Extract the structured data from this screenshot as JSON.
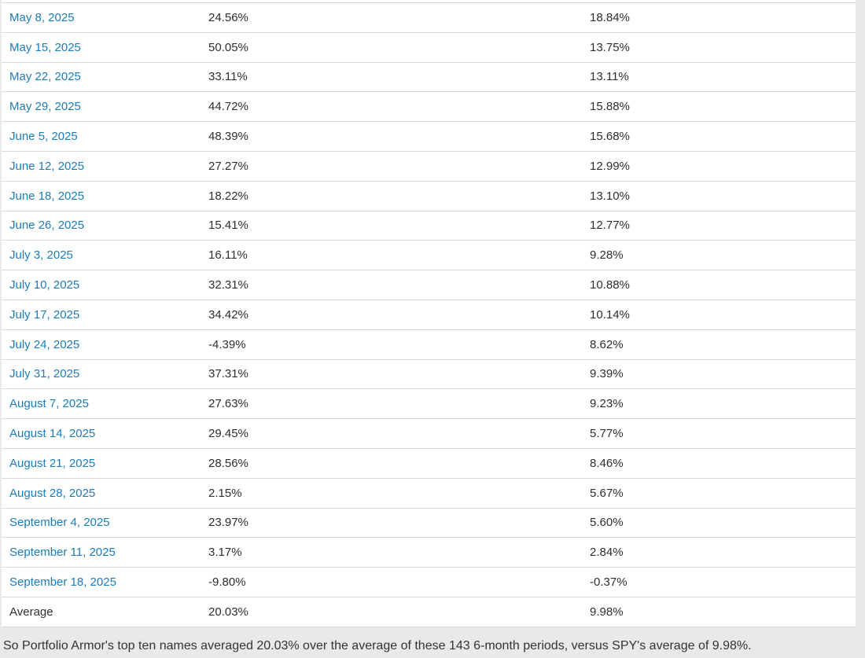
{
  "colors": {
    "page_background": "#e9e9e9",
    "table_background": "#ffffff",
    "row_border": "#d8d8d8",
    "link": "#1b7cba",
    "text": "#2e2e2e"
  },
  "table": {
    "rows": [
      {
        "date": "May 8, 2025",
        "top_names_return": "24.56%",
        "spy_return": "18.84%"
      },
      {
        "date": "May 15, 2025",
        "top_names_return": "50.05%",
        "spy_return": "13.75%"
      },
      {
        "date": "May 22, 2025",
        "top_names_return": "33.11%",
        "spy_return": "13.11%"
      },
      {
        "date": "May 29, 2025",
        "top_names_return": "44.72%",
        "spy_return": "15.88%"
      },
      {
        "date": "June 5, 2025",
        "top_names_return": "48.39%",
        "spy_return": "15.68%"
      },
      {
        "date": "June 12, 2025",
        "top_names_return": "27.27%",
        "spy_return": "12.99%"
      },
      {
        "date": "June 18, 2025",
        "top_names_return": "18.22%",
        "spy_return": "13.10%"
      },
      {
        "date": "June 26, 2025",
        "top_names_return": "15.41%",
        "spy_return": "12.77%"
      },
      {
        "date": "July 3, 2025",
        "top_names_return": "16.11%",
        "spy_return": "9.28%"
      },
      {
        "date": "July 10, 2025",
        "top_names_return": "32.31%",
        "spy_return": "10.88%"
      },
      {
        "date": "July 17, 2025",
        "top_names_return": "34.42%",
        "spy_return": "10.14%"
      },
      {
        "date": "July 24, 2025",
        "top_names_return": "-4.39%",
        "spy_return": "8.62%"
      },
      {
        "date": "July 31, 2025",
        "top_names_return": "37.31%",
        "spy_return": "9.39%"
      },
      {
        "date": "August 7, 2025",
        "top_names_return": "27.63%",
        "spy_return": "9.23%"
      },
      {
        "date": "August 14, 2025",
        "top_names_return": "29.45%",
        "spy_return": "5.77%"
      },
      {
        "date": "August 21, 2025",
        "top_names_return": "28.56%",
        "spy_return": "8.46%"
      },
      {
        "date": "August 28, 2025",
        "top_names_return": "2.15%",
        "spy_return": "5.67%"
      },
      {
        "date": "September 4, 2025",
        "top_names_return": "23.97%",
        "spy_return": "5.60%"
      },
      {
        "date": "September 11, 2025",
        "top_names_return": "3.17%",
        "spy_return": "2.84%"
      },
      {
        "date": "September 18, 2025",
        "top_names_return": "-9.80%",
        "spy_return": "-0.37%"
      }
    ],
    "average_row": {
      "label": "Average",
      "top_names_return": "20.03%",
      "spy_return": "9.98%"
    }
  },
  "footer": {
    "text": "So Portfolio Armor's top ten names averaged 20.03% over the average of these 143 6-month periods, versus SPY's average of 9.98%."
  }
}
